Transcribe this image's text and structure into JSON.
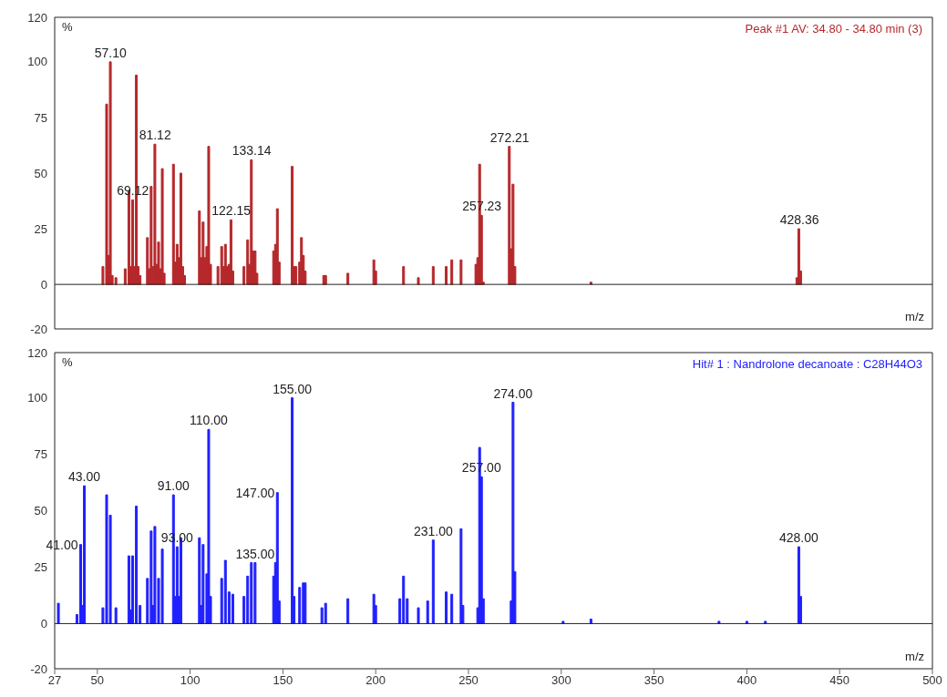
{
  "chart_data": [
    {
      "type": "bar",
      "xlabel": "m/z",
      "ylabel": "%",
      "legend": "top right",
      "tick_labels": "y",
      "x": [
        53,
        55,
        56,
        57,
        58,
        60,
        65,
        67,
        68,
        69,
        70,
        71,
        72,
        73,
        77,
        78,
        79,
        80,
        81,
        82,
        83,
        84,
        85,
        86,
        91,
        92,
        93,
        94,
        95,
        96,
        97,
        105,
        106,
        107,
        108,
        109,
        110,
        111,
        115,
        117,
        118,
        119,
        120,
        121,
        122,
        123,
        129,
        131,
        132,
        133,
        134,
        135,
        136,
        145,
        146,
        147,
        148,
        155,
        156,
        157,
        159,
        160,
        161,
        162,
        172,
        173,
        185,
        199,
        200,
        215,
        223,
        231,
        238,
        241,
        246,
        254,
        255,
        256,
        257,
        258,
        272,
        273,
        274,
        275,
        316,
        427,
        428,
        429
      ],
      "series": [
        {
          "name": "Peak #1  AV: 34.80 - 34.80 min (3)",
          "color": "#b5282b",
          "values": [
            8,
            81,
            13,
            100,
            4,
            3,
            7,
            42,
            8,
            38,
            8,
            94,
            8,
            4,
            21,
            7,
            44,
            8,
            63,
            9,
            19,
            7,
            52,
            5,
            54,
            10,
            18,
            12,
            50,
            8,
            4,
            33,
            12,
            28,
            12,
            17,
            62,
            9,
            8,
            17,
            8,
            18,
            8,
            9,
            29,
            6,
            8,
            20,
            9,
            56,
            15,
            15,
            5,
            15,
            18,
            34,
            10,
            53,
            8,
            8,
            10,
            21,
            13,
            6,
            4,
            4,
            5,
            11,
            6,
            8,
            3,
            8,
            8,
            11,
            11,
            9,
            12,
            54,
            31,
            1,
            62,
            16,
            45,
            8,
            1,
            3,
            25,
            6
          ]
        }
      ],
      "xlim": [
        27,
        500
      ],
      "xticks": [
        27,
        50,
        100,
        150,
        200,
        250,
        300,
        350,
        400,
        450,
        500
      ],
      "ylim": [
        -20,
        120
      ],
      "yticks": [
        -20,
        0,
        25,
        50,
        75,
        100,
        120
      ],
      "annotations": [
        {
          "text": "57.10",
          "x": 57.1,
          "y": 100
        },
        {
          "text": "69.12",
          "x": 69.12,
          "y": 38
        },
        {
          "text": "81.12",
          "x": 81.12,
          "y": 63
        },
        {
          "text": "122.15",
          "x": 122.15,
          "y": 29
        },
        {
          "text": "133.14",
          "x": 133.14,
          "y": 56
        },
        {
          "text": "257.23",
          "x": 257.23,
          "y": 31
        },
        {
          "text": "272.21",
          "x": 272.21,
          "y": 62
        },
        {
          "text": "428.36",
          "x": 428.36,
          "y": 25
        }
      ]
    },
    {
      "type": "bar",
      "xlabel": "m/z",
      "ylabel": "%",
      "legend": "top right",
      "x": [
        29,
        39,
        41,
        42,
        43,
        53,
        55,
        57,
        60,
        67,
        68,
        69,
        71,
        73,
        77,
        79,
        80,
        81,
        83,
        85,
        91,
        92,
        93,
        94,
        95,
        105,
        106,
        107,
        109,
        110,
        111,
        117,
        119,
        121,
        123,
        129,
        131,
        133,
        135,
        145,
        146,
        147,
        148,
        155,
        156,
        159,
        161,
        162,
        171,
        173,
        185,
        199,
        200,
        213,
        215,
        217,
        223,
        228,
        231,
        238,
        241,
        246,
        247,
        255,
        256,
        257,
        258,
        273,
        274,
        275,
        301,
        316,
        385,
        400,
        410,
        428,
        429
      ],
      "series": [
        {
          "name": "Hit# 1 : Nandrolone decanoate : C28H44O3",
          "color": "#2020ff",
          "values": [
            9,
            4,
            35,
            8,
            61,
            7,
            57,
            48,
            7,
            30,
            6,
            30,
            52,
            8,
            20,
            41,
            8,
            43,
            20,
            33,
            57,
            12,
            34,
            12,
            38,
            38,
            8,
            35,
            22,
            86,
            12,
            20,
            28,
            14,
            13,
            12,
            21,
            27,
            27,
            21,
            27,
            58,
            10,
            100,
            12,
            16,
            18,
            18,
            7,
            9,
            11,
            13,
            8,
            11,
            21,
            11,
            7,
            10,
            37,
            14,
            13,
            42,
            8,
            7,
            78,
            65,
            11,
            10,
            98,
            23,
            1,
            2,
            1,
            1,
            1,
            34,
            12
          ]
        }
      ],
      "xlim": [
        27,
        500
      ],
      "xticks": [
        27,
        50,
        100,
        150,
        200,
        250,
        300,
        350,
        400,
        450,
        500
      ],
      "ylim": [
        -20,
        120
      ],
      "yticks": [
        -20,
        0,
        25,
        50,
        75,
        100,
        120
      ],
      "annotations": [
        {
          "text": "41.00",
          "x": 41,
          "y": 35
        },
        {
          "text": "43.00",
          "x": 43,
          "y": 61
        },
        {
          "text": "91.00",
          "x": 91,
          "y": 57
        },
        {
          "text": "93.00",
          "x": 93,
          "y": 34
        },
        {
          "text": "110.00",
          "x": 110,
          "y": 86
        },
        {
          "text": "135.00",
          "x": 135,
          "y": 27
        },
        {
          "text": "147.00",
          "x": 147,
          "y": 58
        },
        {
          "text": "155.00",
          "x": 155,
          "y": 100
        },
        {
          "text": "231.00",
          "x": 231,
          "y": 37
        },
        {
          "text": "257.00",
          "x": 257,
          "y": 65
        },
        {
          "text": "274.00",
          "x": 274,
          "y": 98
        },
        {
          "text": "428.00",
          "x": 428,
          "y": 34
        }
      ]
    }
  ]
}
